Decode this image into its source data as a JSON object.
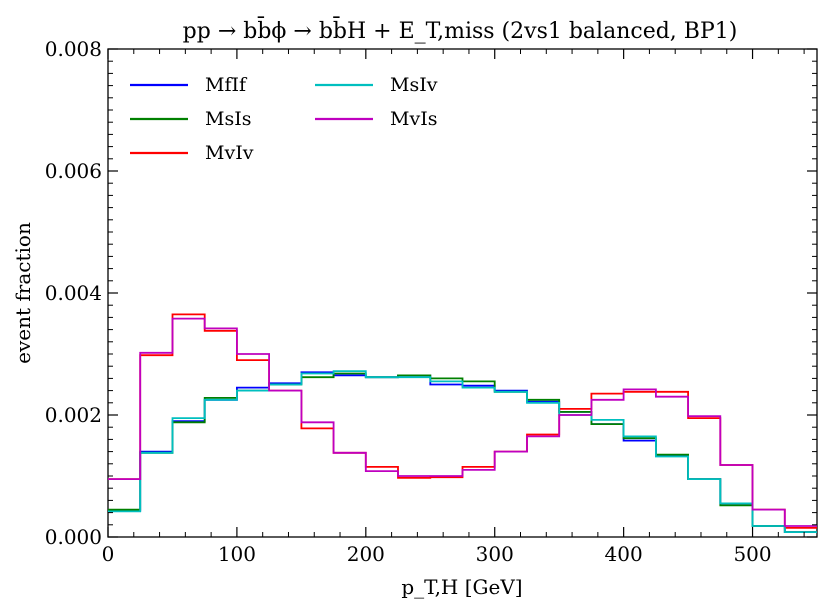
{
  "chart_data": {
    "type": "line",
    "style": "step-histogram",
    "title": "pp → bb̄ϕ → bb̄H + E_T,miss (2vs1 balanced, BP1)",
    "xlabel": "p_T,H [GeV]",
    "ylabel": "event fraction",
    "xlim": [
      0,
      550
    ],
    "ylim": [
      0,
      0.008
    ],
    "xticks": [
      0,
      100,
      200,
      300,
      400,
      500
    ],
    "xtick_labels": [
      "0",
      "100",
      "200",
      "300",
      "400",
      "500"
    ],
    "yticks": [
      0.0,
      0.002,
      0.004,
      0.006,
      0.008
    ],
    "ytick_labels": [
      "0.000",
      "0.002",
      "0.004",
      "0.006",
      "0.008"
    ],
    "bin_edges": [
      0,
      25,
      50,
      75,
      100,
      125,
      150,
      175,
      200,
      225,
      250,
      275,
      300,
      325,
      350,
      375,
      400,
      425,
      450,
      475,
      500,
      525,
      550
    ],
    "legend_position": "top-left",
    "series": [
      {
        "name": "MfIf",
        "color": "#0000ff",
        "values": [
          0.00043,
          0.0014,
          0.0019,
          0.00225,
          0.00245,
          0.00252,
          0.0027,
          0.00265,
          0.00262,
          0.00265,
          0.0025,
          0.00248,
          0.0024,
          0.00222,
          0.00205,
          0.00185,
          0.00158,
          0.00133,
          0.00095,
          0.00055,
          0.00018,
          8e-05
        ]
      },
      {
        "name": "MsIs",
        "color": "#008000",
        "values": [
          0.00045,
          0.00138,
          0.00188,
          0.00228,
          0.0024,
          0.0025,
          0.00262,
          0.00268,
          0.00262,
          0.00265,
          0.0026,
          0.00255,
          0.00238,
          0.00225,
          0.00205,
          0.00185,
          0.00162,
          0.00135,
          0.00095,
          0.00052,
          0.00018,
          8e-05
        ]
      },
      {
        "name": "MvIv",
        "color": "#ff0000",
        "values": [
          0.00095,
          0.00298,
          0.00365,
          0.00338,
          0.0029,
          0.0024,
          0.00178,
          0.00138,
          0.00115,
          0.00097,
          0.00098,
          0.00115,
          0.0014,
          0.00168,
          0.0021,
          0.00235,
          0.00238,
          0.00238,
          0.00195,
          0.00118,
          0.00045,
          0.00015
        ]
      },
      {
        "name": "MsIv",
        "color": "#00bfbf",
        "values": [
          0.00042,
          0.00138,
          0.00195,
          0.00225,
          0.0024,
          0.0025,
          0.00268,
          0.00272,
          0.00262,
          0.00262,
          0.00255,
          0.00245,
          0.00238,
          0.0022,
          0.002,
          0.00192,
          0.00165,
          0.00132,
          0.00095,
          0.00055,
          0.00018,
          8e-05
        ]
      },
      {
        "name": "MvIs",
        "color": "#bf00bf",
        "values": [
          0.00095,
          0.00302,
          0.00358,
          0.00342,
          0.003,
          0.0024,
          0.00188,
          0.00138,
          0.00108,
          0.001,
          0.001,
          0.0011,
          0.0014,
          0.00165,
          0.002,
          0.00225,
          0.00242,
          0.0023,
          0.00198,
          0.00118,
          0.00045,
          0.00018
        ]
      }
    ],
    "legend_order": [
      "MfIf",
      "MsIs",
      "MvIv",
      "MsIv",
      "MvIs"
    ]
  }
}
